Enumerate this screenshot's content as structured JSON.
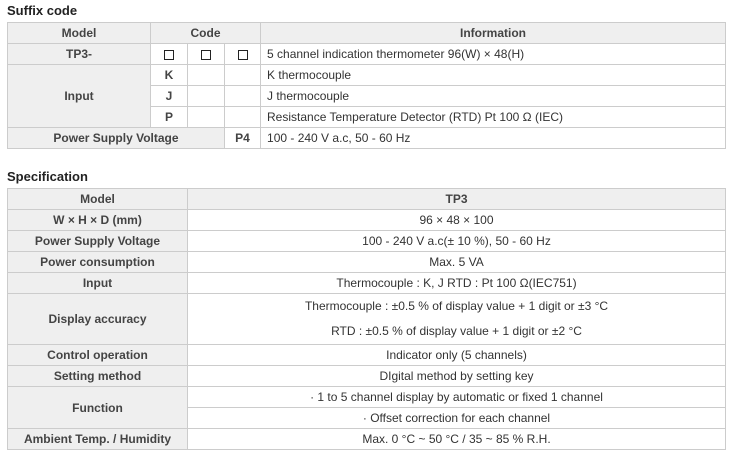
{
  "suffix": {
    "title": "Suffix code",
    "headers": {
      "model": "Model",
      "code": "Code",
      "information": "Information"
    },
    "rows": {
      "model": {
        "label": "TP3-",
        "info": "5 channel indication thermometer 96(W) × 48(H)"
      },
      "input": {
        "label": "Input",
        "options": [
          {
            "code": "K",
            "info": "K thermocouple"
          },
          {
            "code": "J",
            "info": "J thermocouple"
          },
          {
            "code": "P",
            "info": "Resistance Temperature Detector (RTD) Pt 100 Ω (IEC)"
          }
        ]
      },
      "power": {
        "label": "Power Supply Voltage",
        "code": "P4",
        "info": "100 - 240 V a.c, 50 - 60 Hz"
      }
    }
  },
  "spec": {
    "title": "Specification",
    "model_label": "Model",
    "model_value": "TP3",
    "rows": {
      "whd": {
        "label": "W × H × D (mm)",
        "value": "96 × 48 × 100"
      },
      "psv": {
        "label": "Power Supply Voltage",
        "value": "100 - 240 V a.c(± 10 %), 50 - 60 Hz"
      },
      "pc": {
        "label": "Power consumption",
        "value": "Max. 5 VA"
      },
      "input": {
        "label": "Input",
        "value": "Thermocouple : K, J RTD : Pt 100 Ω(IEC751)"
      },
      "accuracy": {
        "label": "Display accuracy",
        "values": [
          "Thermocouple : ±0.5 % of display value + 1 digit or ±3 °C",
          "RTD : ±0.5 % of display value + 1 digit or ±2 °C"
        ]
      },
      "control": {
        "label": "Control operation",
        "value": "Indicator only (5 channels)"
      },
      "setting": {
        "label": "Setting method",
        "value": "DIgital method by setting key"
      },
      "function": {
        "label": "Function",
        "values": [
          "· 1 to 5 channel display by automatic or fixed 1 channel",
          "· Offset correction for each channel"
        ]
      },
      "ambient": {
        "label": "Ambient Temp. / Humidity",
        "value": "Max. 0 °C ~ 50 °C / 35 ~ 85 % R.H."
      }
    }
  }
}
